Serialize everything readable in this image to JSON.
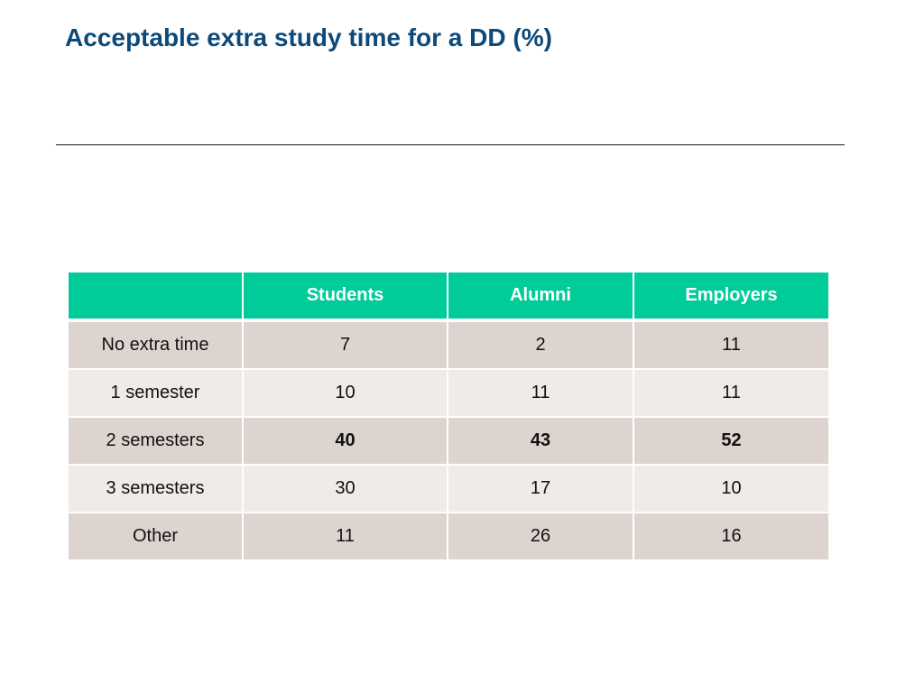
{
  "title": "Acceptable extra study time for a DD (%)",
  "table": {
    "headers": [
      "",
      "Students",
      "Alumni",
      "Employers"
    ],
    "rows": [
      {
        "label": "No extra time",
        "values": [
          "7",
          "2",
          "11"
        ],
        "bold": false
      },
      {
        "label": "1 semester",
        "values": [
          "10",
          "11",
          "11"
        ],
        "bold": false
      },
      {
        "label": "2 semesters",
        "values": [
          "40",
          "43",
          "52"
        ],
        "bold": true
      },
      {
        "label": "3 semesters",
        "values": [
          "30",
          "17",
          "10"
        ],
        "bold": false
      },
      {
        "label": "Other",
        "values": [
          "11",
          "26",
          "16"
        ],
        "bold": false
      }
    ]
  },
  "colors": {
    "title": "#0d4a7a",
    "header_bg": "#00cc99",
    "row_dark": "#ddd4d0",
    "row_light": "#eeebe9"
  }
}
